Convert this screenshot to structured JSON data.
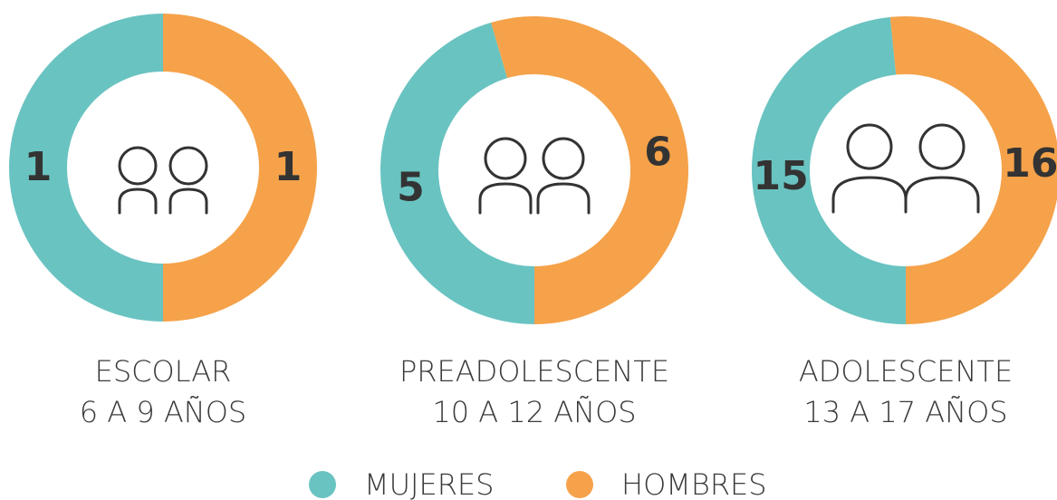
{
  "chart_data": [
    {
      "type": "pie",
      "title": "ESCOLAR",
      "subtitle": "6 A 9 AÑOS",
      "values": [
        1,
        1
      ]
    },
    {
      "type": "pie",
      "title": "PREADOLESCENTE",
      "subtitle": "10 A 12 AÑOS",
      "values": [
        5,
        6
      ]
    },
    {
      "type": "pie",
      "title": "ADOLESCENTE",
      "subtitle": "13 A 17 AÑOS",
      "values": [
        15,
        16
      ]
    }
  ],
  "legend": [
    {
      "name": "MUJERES",
      "color": "#69c3c1"
    },
    {
      "name": "HOMBRES",
      "color": "#f5a24a"
    }
  ]
}
